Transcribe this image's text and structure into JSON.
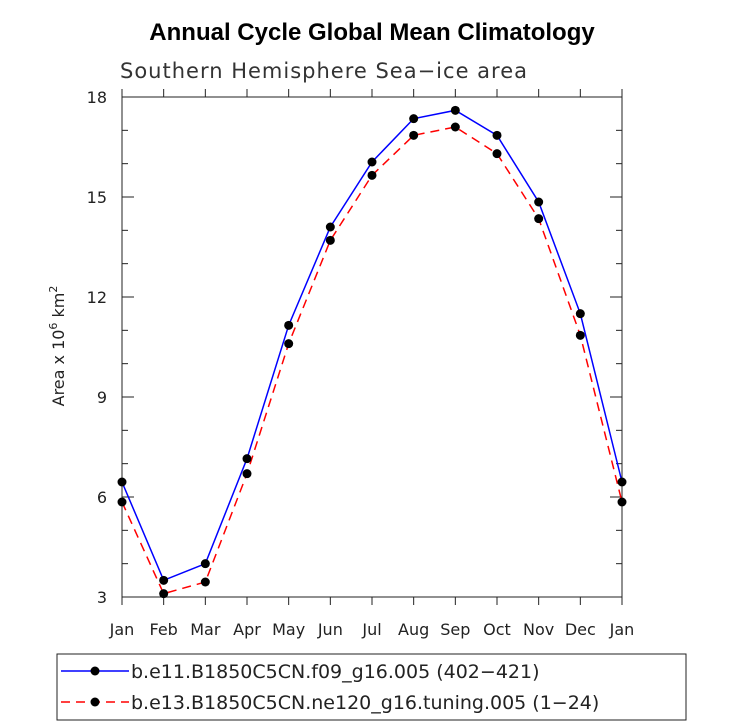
{
  "chart_data": {
    "type": "line",
    "title": "Annual Cycle Global Mean Climatology",
    "subtitle": "Southern Hemisphere Sea−ice area",
    "ylabel": "Area x 10",
    "ylabel_exp": "6",
    "ylabel_unit": " km",
    "ylabel_unit_exp": "2",
    "categories": [
      "Jan",
      "Feb",
      "Mar",
      "Apr",
      "May",
      "Jun",
      "Jul",
      "Aug",
      "Sep",
      "Oct",
      "Nov",
      "Dec",
      "Jan"
    ],
    "ylim": [
      3,
      18
    ],
    "yticks": [
      3,
      6,
      9,
      12,
      15,
      18
    ],
    "series": [
      {
        "name": "b.e11.B1850C5CN.f09_g16.005 (402−421)",
        "color": "#0000ff",
        "dash": "solid",
        "values": [
          6.45,
          3.5,
          4.0,
          7.15,
          11.15,
          14.1,
          16.05,
          17.35,
          17.6,
          16.85,
          14.85,
          11.5,
          6.45
        ]
      },
      {
        "name": "b.e13.B1850C5CN.ne120_g16.tuning.005 (1−24)",
        "color": "#ff0000",
        "dash": "dashed",
        "values": [
          5.85,
          3.1,
          3.45,
          6.7,
          10.6,
          13.7,
          15.65,
          16.85,
          17.1,
          16.3,
          14.35,
          10.85,
          5.85
        ]
      }
    ]
  }
}
